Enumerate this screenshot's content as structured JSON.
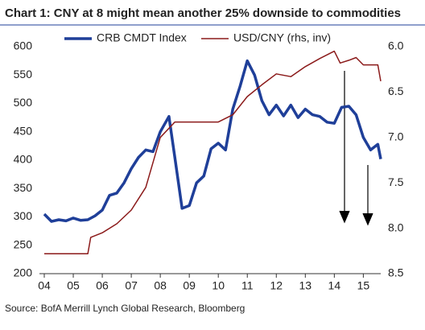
{
  "chart_data": {
    "type": "line",
    "title": "Chart 1: CNY at 8 might mean another 25% downside to commodities",
    "source": "Source: BofA Merrill Lynch Global Research, Bloomberg",
    "xlim": [
      2004,
      2015.6
    ],
    "xticks": [
      {
        "value": 2004,
        "label": "04"
      },
      {
        "value": 2005,
        "label": "05"
      },
      {
        "value": 2006,
        "label": "06"
      },
      {
        "value": 2007,
        "label": "07"
      },
      {
        "value": 2008,
        "label": "08"
      },
      {
        "value": 2009,
        "label": "09"
      },
      {
        "value": 2010,
        "label": "10"
      },
      {
        "value": 2011,
        "label": "11"
      },
      {
        "value": 2012,
        "label": "12"
      },
      {
        "value": 2013,
        "label": "13"
      },
      {
        "value": 2014,
        "label": "14"
      },
      {
        "value": 2015,
        "label": "15"
      }
    ],
    "ylim": [
      200,
      600
    ],
    "yticks": [
      200,
      250,
      300,
      350,
      400,
      450,
      500,
      550,
      600
    ],
    "y2lim": [
      8.5,
      6.0
    ],
    "y2ticks": [
      {
        "value": 6.0,
        "label": "6.0"
      },
      {
        "value": 6.5,
        "label": "6.5"
      },
      {
        "value": 7.0,
        "label": "7.0"
      },
      {
        "value": 7.5,
        "label": "7.5"
      },
      {
        "value": 8.0,
        "label": "8.0"
      },
      {
        "value": 8.5,
        "label": "8.5"
      }
    ],
    "legend": "top",
    "series": [
      {
        "name": "CRB CMDT Index",
        "color": "#1f3f99",
        "width": 3.5,
        "x": [
          2004.0,
          2004.25,
          2004.5,
          2004.75,
          2005.0,
          2005.25,
          2005.5,
          2005.75,
          2006.0,
          2006.25,
          2006.5,
          2006.75,
          2007.0,
          2007.25,
          2007.5,
          2007.75,
          2008.0,
          2008.3,
          2008.5,
          2008.75,
          2009.0,
          2009.25,
          2009.5,
          2009.75,
          2010.0,
          2010.25,
          2010.5,
          2010.75,
          2011.0,
          2011.25,
          2011.5,
          2011.75,
          2012.0,
          2012.25,
          2012.5,
          2012.75,
          2013.0,
          2013.25,
          2013.5,
          2013.75,
          2014.0,
          2014.25,
          2014.5,
          2014.75,
          2015.0,
          2015.25,
          2015.5,
          2015.6
        ],
        "values": [
          305,
          292,
          295,
          293,
          298,
          294,
          295,
          302,
          312,
          338,
          342,
          360,
          385,
          405,
          418,
          415,
          450,
          477,
          405,
          315,
          320,
          360,
          372,
          420,
          430,
          418,
          490,
          530,
          575,
          550,
          505,
          480,
          497,
          478,
          497,
          475,
          490,
          480,
          477,
          467,
          465,
          493,
          495,
          480,
          440,
          418,
          428,
          402
        ]
      },
      {
        "name": "USD/CNY (rhs, inv)",
        "color": "#8b1a1a",
        "width": 1.5,
        "axis": "y2",
        "x": [
          2004.0,
          2005.5,
          2005.6,
          2006.0,
          2006.5,
          2007.0,
          2007.5,
          2008.0,
          2008.5,
          2009.0,
          2010.0,
          2010.5,
          2011.0,
          2011.5,
          2012.0,
          2012.5,
          2013.0,
          2013.5,
          2014.0,
          2014.2,
          2014.5,
          2014.75,
          2015.0,
          2015.5,
          2015.6
        ],
        "values": [
          8.28,
          8.28,
          8.1,
          8.05,
          7.95,
          7.8,
          7.55,
          7.0,
          6.83,
          6.83,
          6.83,
          6.75,
          6.55,
          6.42,
          6.3,
          6.33,
          6.22,
          6.13,
          6.05,
          6.18,
          6.15,
          6.12,
          6.2,
          6.2,
          6.38
        ]
      }
    ]
  }
}
